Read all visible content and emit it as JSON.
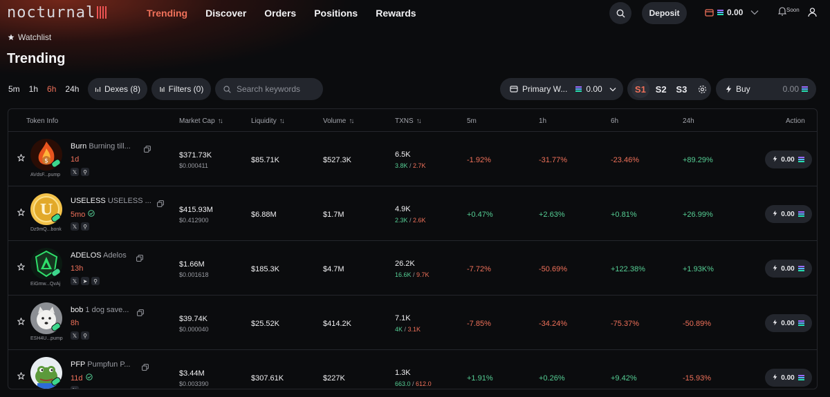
{
  "brand": {
    "logo_text": "nocturnal",
    "accent": "#f0715a"
  },
  "nav": [
    "Trending",
    "Discover",
    "Orders",
    "Positions",
    "Rewards"
  ],
  "nav_active": "Trending",
  "header": {
    "deposit_label": "Deposit",
    "wallet_balance": "0.00",
    "soon_label": "Soon"
  },
  "watchlist_label": "Watchlist",
  "page_title": "Trending",
  "timeframes": [
    "5m",
    "1h",
    "6h",
    "24h"
  ],
  "timeframe_active": "6h",
  "filters": {
    "dexes_label": "Dexes (8)",
    "filters_label": "Filters (0)",
    "search_placeholder": "Search keywords"
  },
  "wallet_select": {
    "label": "Primary W...",
    "balance": "0.00"
  },
  "slots": [
    "S1",
    "S2",
    "S3"
  ],
  "slot_active": "S1",
  "buy": {
    "label": "Buy",
    "amount": "0.00"
  },
  "columns": [
    "Token Info",
    "Market Cap",
    "Liquidity",
    "Volume",
    "TXNS",
    "5m",
    "1h",
    "6h",
    "24h",
    "Action"
  ],
  "rows": [
    {
      "name": "Burn",
      "desc": "Burning till...",
      "age": "1d",
      "verified": false,
      "address": "AVdsF...pump",
      "socials": [
        "x",
        "search"
      ],
      "market_cap": "$371.73K",
      "price": "$0.000411",
      "liquidity": "$85.71K",
      "volume": "$527.3K",
      "txns": "6.5K",
      "buys": "3.8K",
      "sells": "2.7K",
      "ch5m": "-1.92%",
      "ch1h": "-31.77%",
      "ch6h": "-23.46%",
      "ch24h": "+89.29%",
      "action": "0.00",
      "avatar": "fire"
    },
    {
      "name": "USELESS",
      "desc": "USELESS ...",
      "age": "5mo",
      "verified": true,
      "address": "Dz9mQ...bonk",
      "socials": [
        "x",
        "search"
      ],
      "market_cap": "$415.93M",
      "price": "$0.412900",
      "liquidity": "$6.88M",
      "volume": "$1.7M",
      "txns": "4.9K",
      "buys": "2.3K",
      "sells": "2.6K",
      "ch5m": "+0.47%",
      "ch1h": "+2.63%",
      "ch6h": "+0.81%",
      "ch24h": "+26.99%",
      "action": "0.00",
      "avatar": "coin"
    },
    {
      "name": "ADELOS",
      "desc": "Adelos",
      "age": "13h",
      "verified": false,
      "address": "EiGmw...QvAj",
      "socials": [
        "x",
        "telegram",
        "search"
      ],
      "market_cap": "$1.66M",
      "price": "$0.001618",
      "liquidity": "$185.3K",
      "volume": "$4.7M",
      "txns": "26.2K",
      "buys": "16.6K",
      "sells": "9.7K",
      "ch5m": "-7.72%",
      "ch1h": "-50.69%",
      "ch6h": "+122.38%",
      "ch24h": "+1.93K%",
      "action": "0.00",
      "avatar": "shield"
    },
    {
      "name": "bob",
      "desc": "1 dog save...",
      "age": "8h",
      "verified": false,
      "address": "ESH4U...pump",
      "socials": [
        "x",
        "search"
      ],
      "market_cap": "$39.74K",
      "price": "$0.000040",
      "liquidity": "$25.52K",
      "volume": "$414.2K",
      "txns": "7.1K",
      "buys": "4K",
      "sells": "3.1K",
      "ch5m": "-7.85%",
      "ch1h": "-34.24%",
      "ch6h": "-75.37%",
      "ch24h": "-50.89%",
      "action": "0.00",
      "avatar": "dog"
    },
    {
      "name": "PFP",
      "desc": "Pumpfun P...",
      "age": "11d",
      "verified": true,
      "address": "",
      "socials": [
        "x"
      ],
      "market_cap": "$3.44M",
      "price": "$0.003390",
      "liquidity": "$307.61K",
      "volume": "$227K",
      "txns": "1.3K",
      "buys": "663.0",
      "sells": "612.0",
      "ch5m": "+1.91%",
      "ch1h": "+0.26%",
      "ch6h": "+9.42%",
      "ch24h": "-15.93%",
      "action": "0.00",
      "avatar": "frog"
    }
  ]
}
